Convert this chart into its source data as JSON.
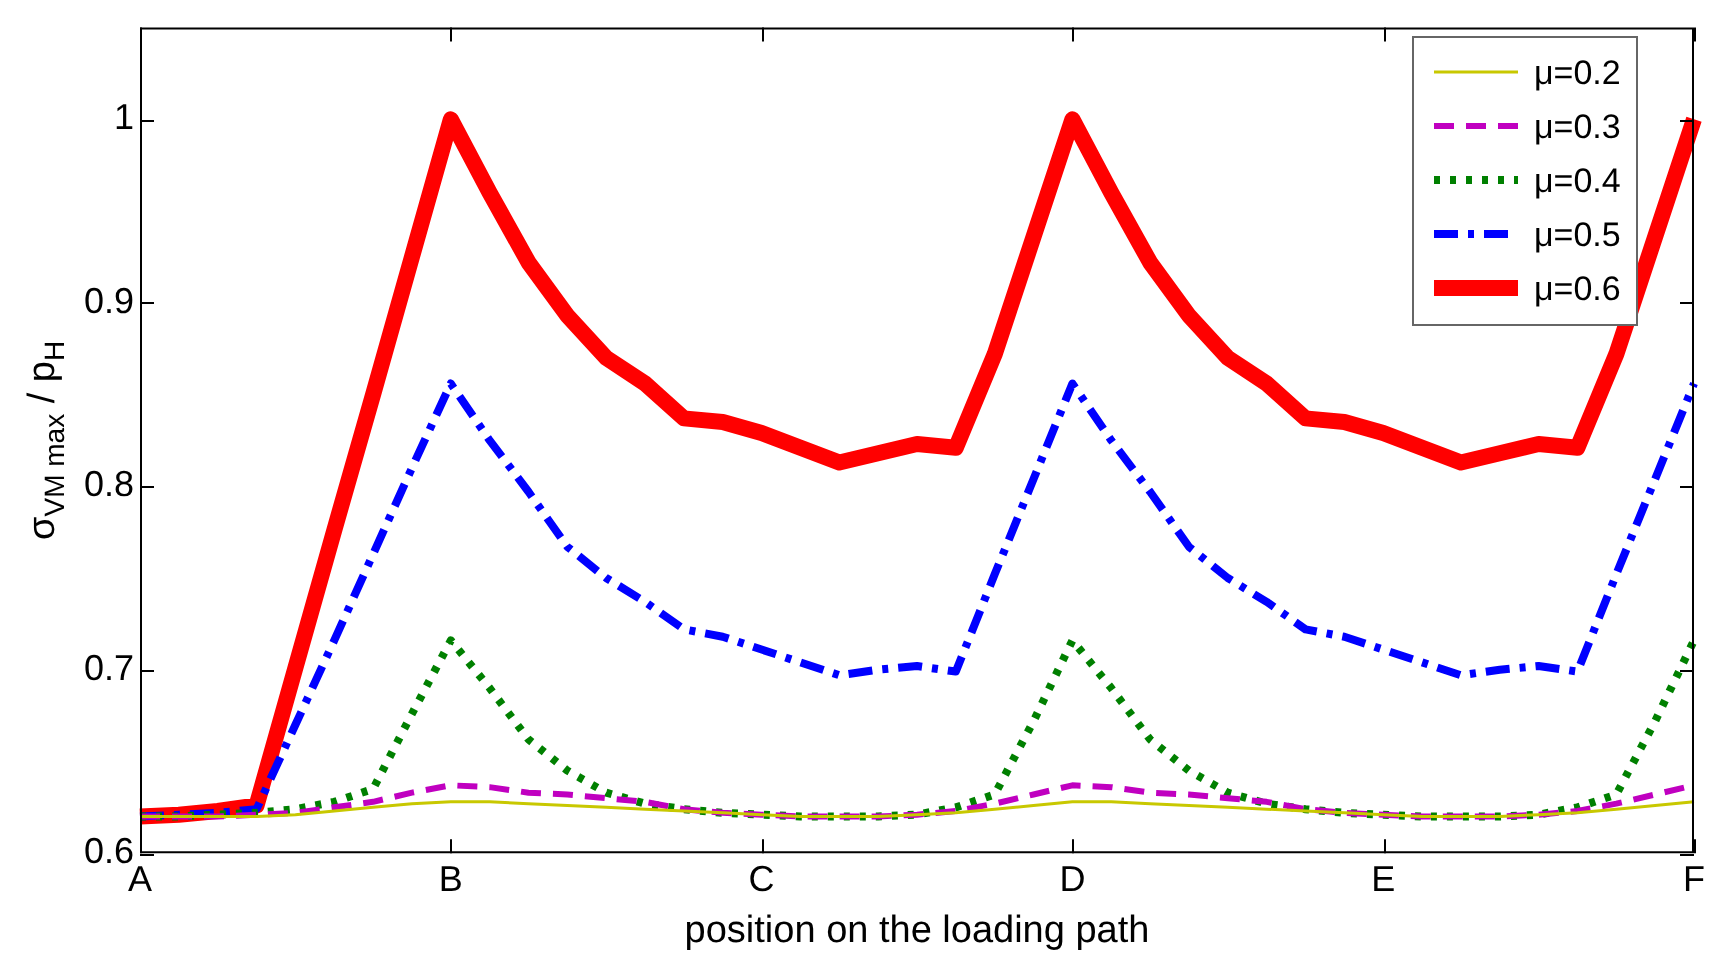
{
  "chart_data": {
    "type": "line",
    "xlabel": "position on the loading path",
    "ylabel": "σ$_{VM max}$ / p$_{H}$",
    "categories": [
      "A",
      null,
      null,
      null,
      null,
      null,
      null,
      null,
      "B",
      null,
      null,
      null,
      null,
      null,
      null,
      null,
      "C",
      null,
      null,
      null,
      null,
      null,
      null,
      null,
      "D",
      null,
      null,
      null,
      null,
      null,
      null,
      null,
      "E",
      null,
      null,
      null,
      null,
      null,
      null,
      null,
      "F"
    ],
    "ylim": [
      0.6,
      1.05
    ],
    "yticks": [
      0.6,
      0.7,
      0.8,
      0.9,
      1
    ],
    "legend": "top right",
    "marker": "none",
    "series": [
      {
        "name": "μ=0.2",
        "color": "#c8c800",
        "line_style": "solid",
        "values": [
          0.62,
          0.62,
          0.62,
          0.62,
          0.621,
          0.623,
          0.625,
          0.627,
          0.628,
          0.628,
          0.627,
          0.626,
          0.625,
          0.624,
          0.623,
          0.622,
          0.621,
          0.62,
          0.62,
          0.62,
          0.621,
          0.622,
          0.624,
          0.626,
          0.628,
          0.628,
          0.627,
          0.626,
          0.625,
          0.624,
          0.623,
          0.622,
          0.621,
          0.62,
          0.62,
          0.62,
          0.621,
          0.622,
          0.624,
          0.626,
          0.628
        ]
      },
      {
        "name": "μ=0.3",
        "color": "#c000c0",
        "line_style": "dashed",
        "values": [
          0.62,
          0.62,
          0.62,
          0.621,
          0.622,
          0.625,
          0.628,
          0.633,
          0.637,
          0.636,
          0.633,
          0.632,
          0.63,
          0.628,
          0.624,
          0.622,
          0.621,
          0.62,
          0.62,
          0.62,
          0.621,
          0.623,
          0.627,
          0.632,
          0.637,
          0.636,
          0.633,
          0.632,
          0.63,
          0.628,
          0.624,
          0.622,
          0.621,
          0.62,
          0.62,
          0.62,
          0.621,
          0.623,
          0.627,
          0.632,
          0.637
        ]
      },
      {
        "name": "μ=0.4",
        "color": "#008000",
        "line_style": "dotted",
        "values": [
          0.62,
          0.62,
          0.621,
          0.622,
          0.624,
          0.628,
          0.635,
          0.676,
          0.716,
          0.69,
          0.662,
          0.645,
          0.633,
          0.627,
          0.624,
          0.622,
          0.621,
          0.62,
          0.62,
          0.62,
          0.621,
          0.625,
          0.632,
          0.672,
          0.716,
          0.69,
          0.662,
          0.645,
          0.633,
          0.627,
          0.624,
          0.622,
          0.621,
          0.62,
          0.62,
          0.62,
          0.621,
          0.625,
          0.632,
          0.672,
          0.716
        ]
      },
      {
        "name": "μ=0.5",
        "color": "#0000ff",
        "line_style": "dashdot",
        "values": [
          0.62,
          0.621,
          0.622,
          0.624,
          0.67,
          0.716,
          0.763,
          0.81,
          0.856,
          0.825,
          0.797,
          0.767,
          0.75,
          0.737,
          0.722,
          0.718,
          0.711,
          0.704,
          0.697,
          0.7,
          0.702,
          0.699,
          0.752,
          0.804,
          0.856,
          0.825,
          0.797,
          0.767,
          0.75,
          0.737,
          0.722,
          0.718,
          0.711,
          0.704,
          0.697,
          0.7,
          0.702,
          0.699,
          0.752,
          0.804,
          0.856
        ]
      },
      {
        "name": "μ=0.6",
        "color": "#ff0000",
        "line_style": "solid",
        "values": [
          0.62,
          0.621,
          0.623,
          0.626,
          0.701,
          0.776,
          0.85,
          0.925,
          1.0,
          0.96,
          0.922,
          0.893,
          0.87,
          0.856,
          0.837,
          0.835,
          0.829,
          0.821,
          0.813,
          0.818,
          0.823,
          0.821,
          0.872,
          0.936,
          1.0,
          0.96,
          0.922,
          0.893,
          0.87,
          0.856,
          0.837,
          0.835,
          0.829,
          0.821,
          0.813,
          0.818,
          0.823,
          0.821,
          0.872,
          0.936,
          1.0
        ]
      }
    ]
  }
}
